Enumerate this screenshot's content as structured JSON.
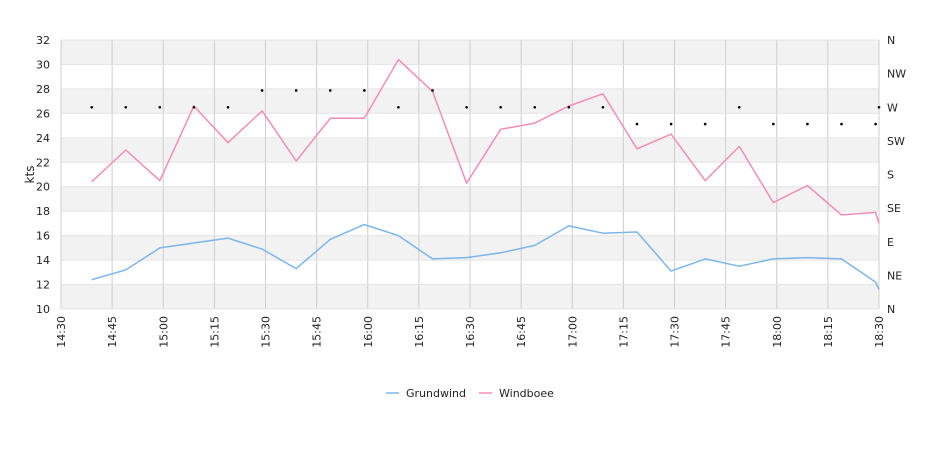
{
  "chart_data": {
    "type": "line",
    "ylabel": "kts",
    "ylim": [
      10,
      32
    ],
    "yticks": [
      10,
      12,
      14,
      16,
      18,
      20,
      22,
      24,
      26,
      28,
      30,
      32
    ],
    "xrange": [
      "14:30",
      "18:30"
    ],
    "xticks": [
      "14:30",
      "14:45",
      "15:00",
      "15:15",
      "15:30",
      "15:45",
      "16:00",
      "16:15",
      "16:30",
      "16:45",
      "17:00",
      "17:15",
      "17:30",
      "17:45",
      "18:00",
      "18:15",
      "18:30"
    ],
    "direction_axis": {
      "labels": [
        "N",
        "NE",
        "E",
        "SE",
        "S",
        "SW",
        "W",
        "NW",
        "N"
      ]
    },
    "x": [
      "14:39",
      "14:49",
      "14:59",
      "15:09",
      "15:19",
      "15:29",
      "15:39",
      "15:49",
      "15:59",
      "16:09",
      "16:19",
      "16:29",
      "16:39",
      "16:49",
      "16:59",
      "17:09",
      "17:19",
      "17:29",
      "17:39",
      "17:49",
      "17:59",
      "18:09",
      "18:19",
      "18:29",
      "18:30"
    ],
    "series": [
      {
        "name": "Grundwind",
        "color": "#7cb5ec",
        "values": [
          12.4,
          13.2,
          15.0,
          15.4,
          15.8,
          14.9,
          13.3,
          15.7,
          16.9,
          16.0,
          14.1,
          14.2,
          14.6,
          15.2,
          16.8,
          16.2,
          16.3,
          13.1,
          14.1,
          13.5,
          14.1,
          14.2,
          14.1,
          12.2,
          11.6
        ]
      },
      {
        "name": "Windboee",
        "color": "#f28cb8",
        "values": [
          20.4,
          23.0,
          20.5,
          26.6,
          23.6,
          26.2,
          22.1,
          25.6,
          25.6,
          30.4,
          27.8,
          20.3,
          24.7,
          25.2,
          26.6,
          27.6,
          23.1,
          24.3,
          20.5,
          23.3,
          18.7,
          20.1,
          17.7,
          17.9,
          17.0
        ]
      }
    ],
    "direction_markers": [
      {
        "x": "14:39",
        "dir": "W"
      },
      {
        "x": "14:49",
        "dir": "W"
      },
      {
        "x": "14:59",
        "dir": "W"
      },
      {
        "x": "15:09",
        "dir": "W"
      },
      {
        "x": "15:19",
        "dir": "W"
      },
      {
        "x": "15:29",
        "dir": "WNW"
      },
      {
        "x": "15:39",
        "dir": "WNW"
      },
      {
        "x": "15:49",
        "dir": "WNW"
      },
      {
        "x": "15:59",
        "dir": "WNW"
      },
      {
        "x": "16:09",
        "dir": "W"
      },
      {
        "x": "16:19",
        "dir": "WNW"
      },
      {
        "x": "16:29",
        "dir": "W"
      },
      {
        "x": "16:39",
        "dir": "W"
      },
      {
        "x": "16:49",
        "dir": "W"
      },
      {
        "x": "16:59",
        "dir": "W"
      },
      {
        "x": "17:09",
        "dir": "W"
      },
      {
        "x": "17:19",
        "dir": "WSW"
      },
      {
        "x": "17:29",
        "dir": "WSW"
      },
      {
        "x": "17:39",
        "dir": "WSW"
      },
      {
        "x": "17:49",
        "dir": "W"
      },
      {
        "x": "17:59",
        "dir": "WSW"
      },
      {
        "x": "18:09",
        "dir": "WSW"
      },
      {
        "x": "18:19",
        "dir": "WSW"
      },
      {
        "x": "18:29",
        "dir": "WSW"
      },
      {
        "x": "18:30",
        "dir": "W"
      }
    ],
    "grid": true,
    "legend": "bottom-center"
  }
}
